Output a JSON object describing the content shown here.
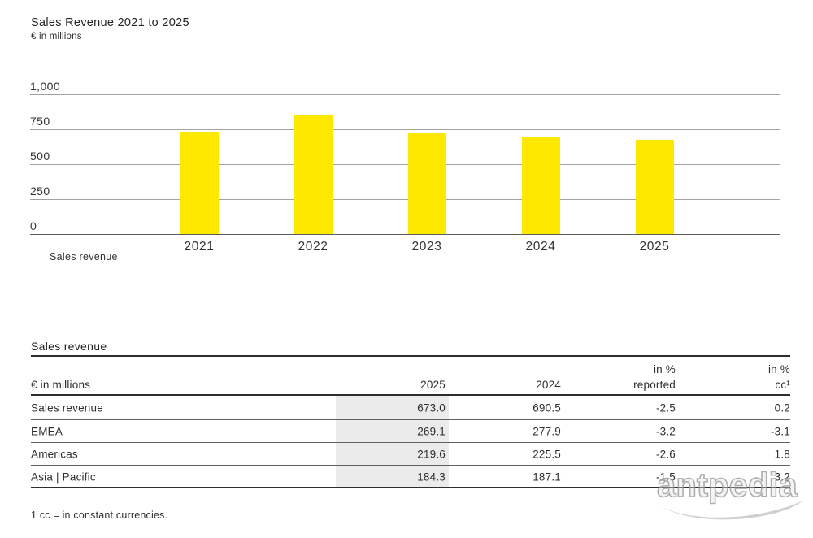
{
  "chart": {
    "title": "Sales Revenue 2021 to 2025",
    "unit": "€ in millions",
    "legend_label": "Sales revenue"
  },
  "chart_data": {
    "type": "bar",
    "title": "Sales Revenue 2021 to 2025",
    "ylabel": "€ in millions",
    "categories": [
      "2021",
      "2022",
      "2023",
      "2024",
      "2025"
    ],
    "series": [
      {
        "name": "Sales revenue",
        "values": [
          725,
          847,
          721,
          690.5,
          673.0
        ]
      }
    ],
    "ylim": [
      0,
      1000
    ],
    "yticks": [
      1000,
      750,
      500,
      250,
      0
    ],
    "ytick_labels": [
      "1,000",
      "750",
      "500",
      "250",
      "0"
    ],
    "bar_color": "#FFE800",
    "grid": true,
    "legend_position": "bottom-left"
  },
  "table": {
    "title": "Sales revenue",
    "headers": {
      "col_label": "€ in millions",
      "col_2025": "2025",
      "col_2024": "2024",
      "pct_reported_line1": "in %",
      "pct_reported_line2": "reported",
      "pct_cc_line1": "in %",
      "pct_cc_line2": "cc¹"
    },
    "rows": [
      {
        "label": "Sales revenue",
        "y2025": "673.0",
        "y2024": "690.5",
        "pct_reported": "-2.5",
        "pct_cc": "0.2"
      },
      {
        "label": "EMEA",
        "y2025": "269.1",
        "y2024": "277.9",
        "pct_reported": "-3.2",
        "pct_cc": "-3.1"
      },
      {
        "label": "Americas",
        "y2025": "219.6",
        "y2024": "225.5",
        "pct_reported": "-2.6",
        "pct_cc": "1.8"
      },
      {
        "label": "Asia | Pacific",
        "y2025": "184.3",
        "y2024": "187.1",
        "pct_reported": "-1.5",
        "pct_cc": "3.2"
      }
    ],
    "footnote": "1 cc = in constant currencies."
  },
  "watermark": {
    "text": "antpedia"
  },
  "colors": {
    "bar_yellow": "#FFE800",
    "text_dark": "#2e2e2e",
    "gridline_gray": "#a2a2a2",
    "axis_dark": "#5c5c5c",
    "highlight_gray": "#ebebeb",
    "watermark_gray": "#a9a9a9"
  }
}
